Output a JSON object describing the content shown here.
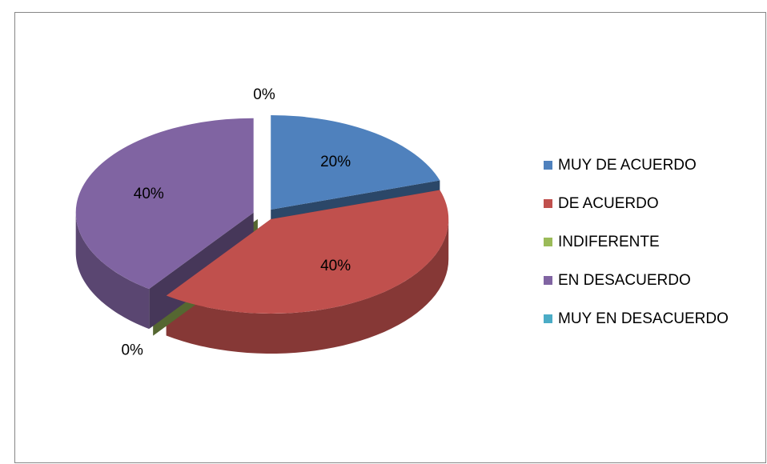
{
  "chart_data": {
    "type": "pie3d",
    "categories": [
      "MUY DE ACUERDO",
      "DE ACUERDO",
      "INDIFERENTE",
      "EN DESACUERDO",
      "MUY EN DESACUERDO"
    ],
    "values": [
      20,
      40,
      0,
      40,
      0
    ],
    "value_labels": [
      "20%",
      "40%",
      "0%",
      "40%",
      "0%"
    ],
    "colors": [
      "#4f81bd",
      "#c0504d",
      "#9bbb59",
      "#8064a2",
      "#4bacc6"
    ],
    "legend": "right"
  }
}
